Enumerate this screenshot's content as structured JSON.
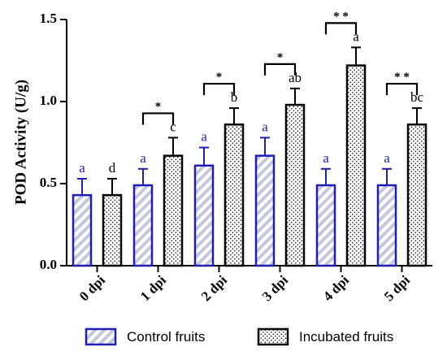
{
  "chart_data": {
    "type": "bar",
    "ylabel": "POD Activity (U/g)",
    "xlabel": "",
    "ylim": [
      0,
      1.5
    ],
    "yticks": [
      "0.0",
      "0.5",
      "1.0",
      "1.5"
    ],
    "categories": [
      "0 dpi",
      "1 dpi",
      "2 dpi",
      "3 dpi",
      "4 dpi",
      "5 dpi"
    ],
    "series": [
      {
        "name": "Control fruits",
        "values": [
          0.43,
          0.49,
          0.61,
          0.67,
          0.49,
          0.49
        ],
        "errors": [
          0.1,
          0.1,
          0.11,
          0.11,
          0.1,
          0.1
        ],
        "letters": [
          "a",
          "a",
          "a",
          "a",
          "a",
          "a"
        ],
        "letter_color": "#1f1fb4",
        "edge_color": "#1f1fb4"
      },
      {
        "name": "Incubated fruits",
        "values": [
          0.43,
          0.67,
          0.86,
          0.98,
          1.22,
          0.86
        ],
        "errors": [
          0.1,
          0.11,
          0.1,
          0.1,
          0.11,
          0.1
        ],
        "letters": [
          "d",
          "c",
          "b",
          "ab",
          "a",
          "bc"
        ],
        "letter_color": "#000000",
        "edge_color": "#000000"
      }
    ],
    "significance": [
      "",
      "*",
      "*",
      "*",
      "**",
      "**"
    ],
    "legend": {
      "position": "bottom",
      "entries": [
        "Control fruits",
        "Incubated fruits"
      ]
    }
  }
}
